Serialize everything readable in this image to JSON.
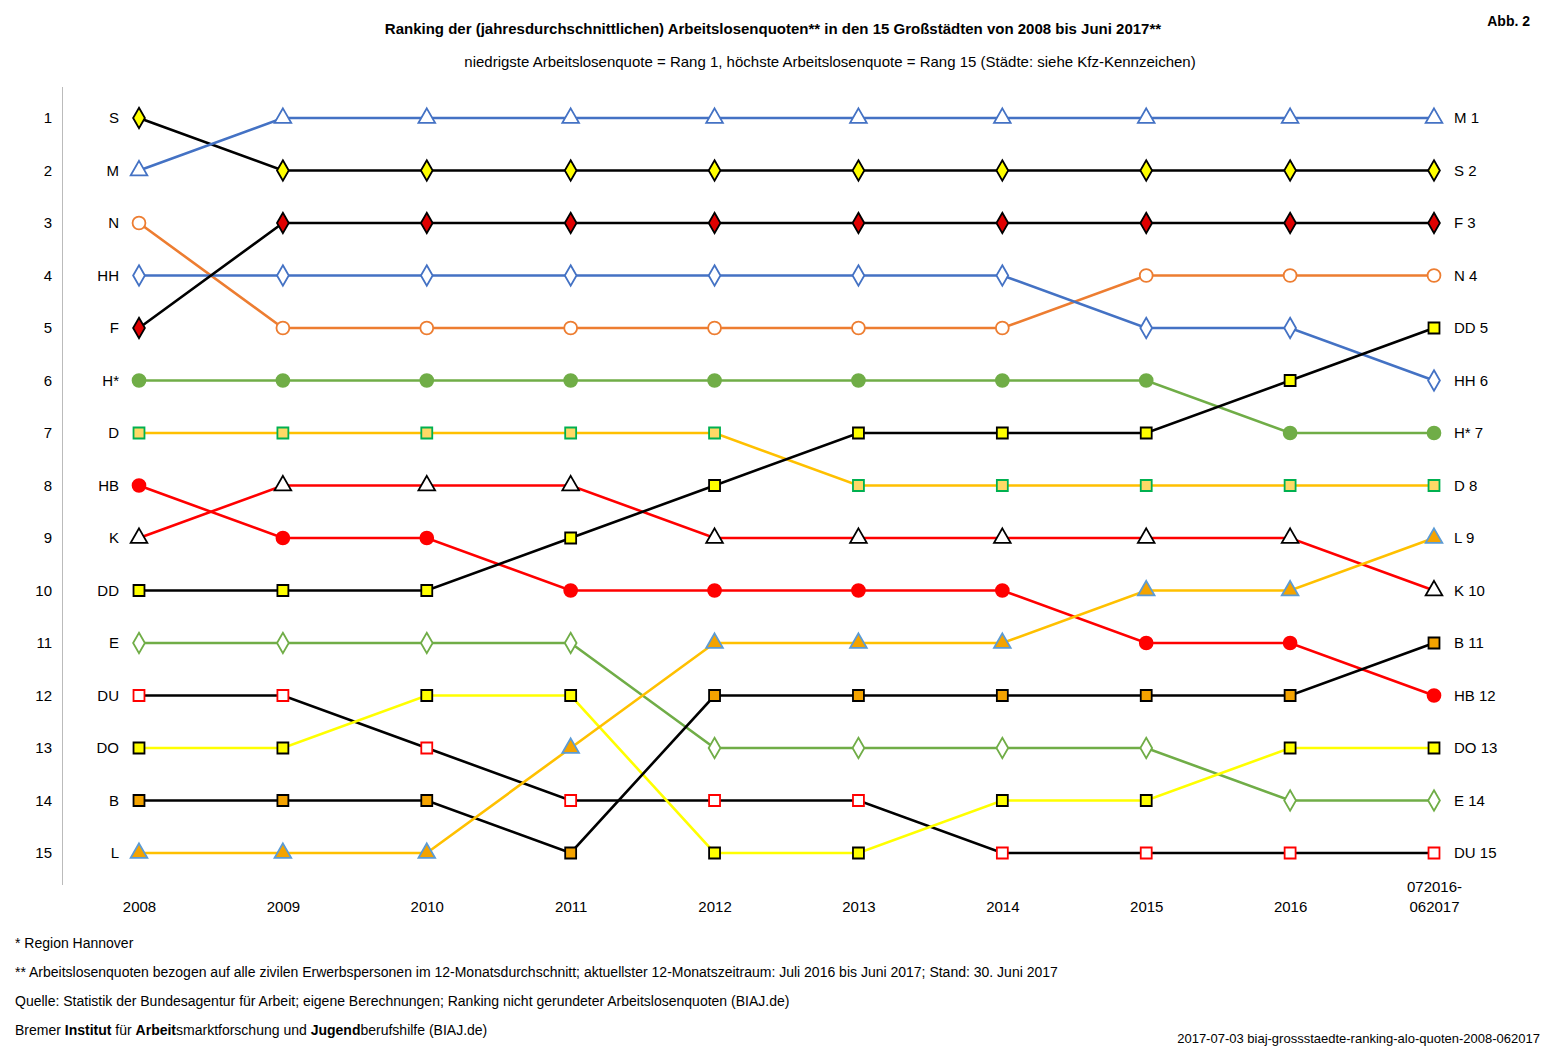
{
  "chart_data": {
    "type": "line",
    "title": "Ranking der (jahresdurchschnittlichen) Arbeitslosenquoten** in den 15 Großstädten von 2008 bis Juni 2017**",
    "subtitle": "niedrigste Arbeitslosenquote = Rang 1, höchste Arbeitslosenquote = Rang 15 (Städte: siehe Kfz-Kennzeichen)",
    "figure_label": "Abb. 2",
    "categories": [
      "2008",
      "2009",
      "2010",
      "2011",
      "2012",
      "2013",
      "2014",
      "2015",
      "2016",
      "072016-\n062017"
    ],
    "ylim": [
      0.4,
      15.6
    ],
    "yticks": [
      1,
      2,
      3,
      4,
      5,
      6,
      7,
      8,
      9,
      10,
      11,
      12,
      13,
      14,
      15
    ],
    "grid": false,
    "series": [
      {
        "name": "S",
        "color": "#000000",
        "marker": "diamond",
        "values": [
          1,
          2,
          2,
          2,
          2,
          2,
          2,
          2,
          2,
          2
        ]
      },
      {
        "name": "M",
        "color": "#4472c4",
        "marker": "triangle",
        "values": [
          2,
          1,
          1,
          1,
          1,
          1,
          1,
          1,
          1,
          1
        ]
      },
      {
        "name": "N",
        "color": "#ed7d31",
        "marker": "circle",
        "values": [
          3,
          5,
          5,
          5,
          5,
          5,
          5,
          4,
          4,
          4
        ]
      },
      {
        "name": "HH",
        "color": "#4472c4",
        "marker": "diamond",
        "values": [
          4,
          4,
          4,
          4,
          4,
          4,
          4,
          5,
          5,
          6
        ]
      },
      {
        "name": "F",
        "color": "#000000",
        "marker": "diamond",
        "values": [
          5,
          3,
          3,
          3,
          3,
          3,
          3,
          3,
          3,
          3
        ]
      },
      {
        "name": "H*",
        "color": "#70ad47",
        "marker": "circle",
        "values": [
          6,
          6,
          6,
          6,
          6,
          6,
          6,
          6,
          7,
          7
        ]
      },
      {
        "name": "D",
        "color": "#ffc000",
        "marker": "square",
        "values": [
          7,
          7,
          7,
          7,
          7,
          8,
          8,
          8,
          8,
          8
        ]
      },
      {
        "name": "HB",
        "color": "#ff0000",
        "marker": "circle",
        "values": [
          8,
          9,
          9,
          10,
          10,
          10,
          10,
          11,
          11,
          12
        ]
      },
      {
        "name": "K",
        "color": "#ff0000",
        "marker": "triangle",
        "values": [
          9,
          8,
          8,
          8,
          9,
          9,
          9,
          9,
          9,
          10
        ]
      },
      {
        "name": "DD",
        "color": "#000000",
        "marker": "square",
        "values": [
          10,
          10,
          10,
          9,
          8,
          7,
          7,
          7,
          6,
          5
        ]
      },
      {
        "name": "E",
        "color": "#70ad47",
        "marker": "diamond",
        "values": [
          11,
          11,
          11,
          11,
          13,
          13,
          13,
          13,
          14,
          14
        ]
      },
      {
        "name": "DU",
        "color": "#000000",
        "marker": "square",
        "values": [
          12,
          12,
          13,
          14,
          14,
          14,
          15,
          15,
          15,
          15
        ]
      },
      {
        "name": "DO",
        "color": "#ffff00",
        "marker": "square",
        "values": [
          13,
          13,
          12,
          12,
          15,
          15,
          14,
          14,
          13,
          13
        ]
      },
      {
        "name": "B",
        "color": "#000000",
        "marker": "square",
        "values": [
          14,
          14,
          14,
          15,
          12,
          12,
          12,
          12,
          12,
          11
        ]
      },
      {
        "name": "L",
        "color": "#ffc000",
        "marker": "triangle",
        "values": [
          15,
          15,
          15,
          13,
          11,
          11,
          11,
          10,
          10,
          9
        ]
      }
    ],
    "notes": [
      "* Region Hannover",
      "** Arbeitslosenquoten bezogen auf alle zivilen Erwerbspersonen im 12-Monatsdurchschnitt; aktuellster 12-Monatszeitraum: Juli 2016 bis Juni 2017; Stand: 30. Juni 2017",
      "Quelle: Statistik der Bundesagentur für Arbeit; eigene Berechnungen; Ranking nicht gerundeter Arbeitslosenquoten (BIAJ.de)"
    ],
    "credit_parts": [
      "Bremer ",
      "Institut",
      " für ",
      "Arbeit",
      "smarktforschung und ",
      "Jugend",
      "berufshilfe (BIAJ.de)"
    ],
    "file_id": "2017-07-03 biaj-grossstaedte-ranking-alo-quoten-2008-062017"
  }
}
